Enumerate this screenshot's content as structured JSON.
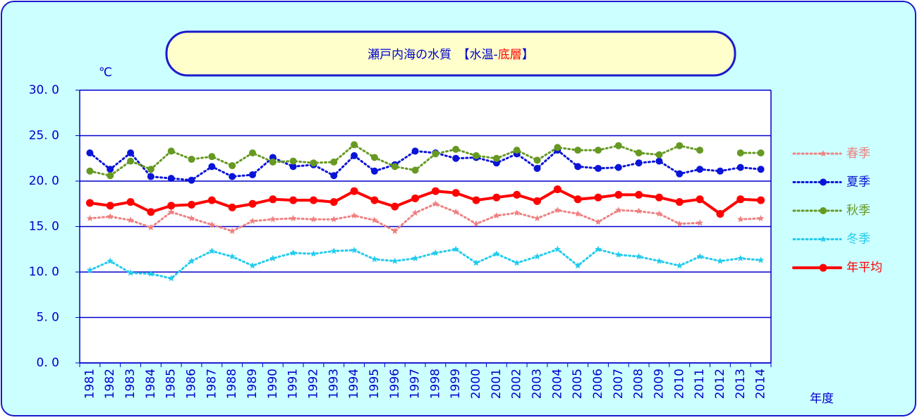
{
  "chart_data": {
    "type": "line",
    "title_parts": [
      {
        "text": "瀬戸内海の水質　【水温-",
        "color": "#0000cc"
      },
      {
        "text": "底層",
        "color": "#ff0000"
      },
      {
        "text": "】",
        "color": "#0000cc"
      }
    ],
    "y_unit": "℃",
    "x_label": "年度",
    "categories": [
      "1981",
      "1982",
      "1983",
      "1984",
      "1985",
      "1986",
      "1987",
      "1988",
      "1989",
      "1990",
      "1991",
      "1992",
      "1993",
      "1994",
      "1995",
      "1996",
      "1997",
      "1998",
      "1999",
      "2000",
      "2001",
      "2002",
      "2003",
      "2004",
      "2005",
      "2006",
      "2007",
      "2008",
      "2009",
      "2010",
      "2011",
      "2012",
      "2013",
      "2014"
    ],
    "ylim": [
      0,
      30
    ],
    "yticks": [
      {
        "value": 0,
        "label": "0. 0"
      },
      {
        "value": 5,
        "label": "5. 0"
      },
      {
        "value": 10,
        "label": "10. 0"
      },
      {
        "value": 15,
        "label": "15. 0"
      },
      {
        "value": 20,
        "label": "20. 0"
      },
      {
        "value": 25,
        "label": "25. 0"
      },
      {
        "value": 30,
        "label": "30. 0"
      }
    ],
    "grid": true,
    "legend": "right",
    "series": [
      {
        "name": "春季",
        "color": "#f08080",
        "dotted": true,
        "marker": "star",
        "values": [
          15.9,
          16.1,
          15.7,
          14.9,
          16.6,
          15.9,
          15.2,
          14.5,
          15.6,
          15.8,
          15.9,
          15.8,
          15.8,
          16.2,
          15.7,
          14.5,
          16.5,
          17.5,
          16.6,
          15.3,
          16.2,
          16.5,
          15.9,
          16.8,
          16.4,
          15.5,
          16.8,
          16.7,
          16.4,
          15.3,
          15.4,
          null,
          15.8,
          15.9
        ]
      },
      {
        "name": "夏季",
        "color": "#0a14d8",
        "dotted": true,
        "marker": "circle",
        "values": [
          23.1,
          21.3,
          23.1,
          20.5,
          20.3,
          20.1,
          21.6,
          20.5,
          20.7,
          22.6,
          21.6,
          21.8,
          20.6,
          22.8,
          21.1,
          21.8,
          23.3,
          23.1,
          22.5,
          22.6,
          22.0,
          23.0,
          21.4,
          23.4,
          21.6,
          21.4,
          21.5,
          22.0,
          22.2,
          20.8,
          21.3,
          21.1,
          21.5,
          21.3
        ]
      },
      {
        "name": "秋季",
        "color": "#669922",
        "dotted": true,
        "marker": "circle",
        "values": [
          21.1,
          20.6,
          22.2,
          21.3,
          23.3,
          22.4,
          22.7,
          21.7,
          23.1,
          22.1,
          22.2,
          22.0,
          22.1,
          24.0,
          22.6,
          21.6,
          21.2,
          23.0,
          23.5,
          22.8,
          22.5,
          23.4,
          22.3,
          23.7,
          23.4,
          23.4,
          23.9,
          23.1,
          22.9,
          23.9,
          23.4,
          null,
          23.1,
          23.1
        ]
      },
      {
        "name": "冬季",
        "color": "#22ccee",
        "dotted": true,
        "marker": "star",
        "values": [
          10.2,
          11.2,
          9.9,
          9.8,
          9.3,
          11.2,
          12.3,
          11.7,
          10.7,
          11.5,
          12.1,
          12.0,
          12.3,
          12.4,
          11.4,
          11.2,
          11.5,
          12.1,
          12.5,
          11.0,
          12.0,
          11.0,
          11.7,
          12.5,
          10.7,
          12.5,
          11.9,
          11.7,
          11.2,
          10.7,
          11.7,
          11.2,
          11.5,
          11.3
        ]
      },
      {
        "name": "年平均",
        "color": "#ff0000",
        "dotted": false,
        "marker": "circle",
        "values": [
          17.6,
          17.3,
          17.7,
          16.6,
          17.3,
          17.4,
          17.9,
          17.1,
          17.5,
          18.0,
          17.9,
          17.9,
          17.7,
          18.9,
          17.9,
          17.2,
          18.1,
          18.9,
          18.7,
          17.9,
          18.2,
          18.5,
          17.8,
          19.1,
          18.0,
          18.2,
          18.5,
          18.5,
          18.2,
          17.7,
          18.0,
          16.4,
          18.0,
          17.9
        ]
      }
    ]
  }
}
